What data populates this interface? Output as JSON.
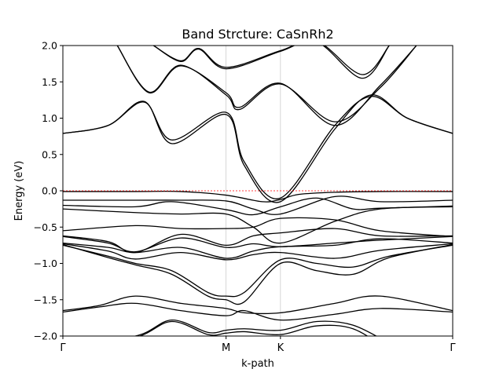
{
  "chart_data": {
    "type": "line",
    "title": "Band Strcture: CaSnRh2",
    "xlabel": "k-path",
    "ylabel": "Energy (eV)",
    "ylim": [
      -2.0,
      2.0
    ],
    "xlim": [
      0,
      4.3
    ],
    "yticks": [
      -2.0,
      -1.5,
      -1.0,
      -0.5,
      0.0,
      0.5,
      1.0,
      1.5,
      2.0
    ],
    "ytick_labels": [
      "−2.0",
      "−1.5",
      "−1.0",
      "−0.5",
      "0.0",
      "0.5",
      "1.0",
      "1.5",
      "2.0"
    ],
    "kpoints": [
      {
        "label": "Γ",
        "x": 0
      },
      {
        "label": "M",
        "x": 1.8
      },
      {
        "label": "K",
        "x": 2.4
      },
      {
        "label": "Γ",
        "x": 4.3
      }
    ],
    "fermi_level": 0.0,
    "grid": "vertical lines at high-symmetry points",
    "colors": {
      "bands": "#000000",
      "fermi": "#ff0000",
      "kline": "#cccccc"
    },
    "series": [
      {
        "x": [
          0,
          0.8,
          1.3,
          1.8,
          2.2,
          2.4,
          2.6,
          3.0,
          3.5,
          4.3
        ],
        "values": [
          -0.01,
          -0.01,
          -0.01,
          -0.06,
          -0.15,
          -0.12,
          -0.05,
          -0.02,
          -0.01,
          -0.01
        ]
      },
      {
        "x": [
          0,
          0.8,
          1.3,
          1.8,
          2.1,
          2.4,
          3.0,
          3.5,
          4.3
        ],
        "values": [
          -0.13,
          -0.13,
          -0.13,
          -0.14,
          -0.25,
          -0.32,
          -0.08,
          -0.15,
          -0.13
        ]
      },
      {
        "x": [
          0,
          0.8,
          1.2,
          1.8,
          2.1,
          2.4,
          2.8,
          3.2,
          3.5,
          4.3
        ],
        "values": [
          -0.2,
          -0.22,
          -0.15,
          -0.26,
          -0.33,
          -0.22,
          -0.1,
          -0.25,
          -0.24,
          -0.21
        ]
      },
      {
        "x": [
          0,
          0.8,
          1.3,
          1.8,
          2.1,
          2.4,
          3.0,
          3.5,
          4.3
        ],
        "values": [
          -0.25,
          -0.3,
          -0.32,
          -0.32,
          -0.5,
          -0.72,
          -0.42,
          -0.25,
          -0.22
        ]
      },
      {
        "x": [
          0,
          0.8,
          1.3,
          1.8,
          2.1,
          2.4,
          3.0,
          3.5,
          4.3
        ],
        "values": [
          -0.55,
          -0.48,
          -0.52,
          -0.52,
          -0.5,
          -0.38,
          -0.4,
          -0.55,
          -0.63
        ]
      },
      {
        "x": [
          0,
          0.5,
          0.8,
          1.3,
          1.8,
          2.1,
          2.4,
          3.0,
          3.5,
          4.3
        ],
        "values": [
          -0.62,
          -0.7,
          -0.85,
          -0.6,
          -0.75,
          -0.62,
          -0.58,
          -0.52,
          -0.62,
          -0.62
        ]
      },
      {
        "x": [
          0,
          0.5,
          0.8,
          1.3,
          1.8,
          2.1,
          2.4,
          3.0,
          3.5,
          4.3
        ],
        "values": [
          -0.63,
          -0.72,
          -0.84,
          -0.65,
          -0.78,
          -0.73,
          -0.77,
          -0.72,
          -0.68,
          -0.63
        ]
      },
      {
        "x": [
          0,
          0.5,
          0.8,
          1.3,
          1.8,
          2.1,
          2.4,
          3.0,
          3.5,
          4.3
        ],
        "values": [
          -0.72,
          -0.78,
          -0.85,
          -0.78,
          -0.93,
          -0.83,
          -0.77,
          -0.75,
          -0.66,
          -0.72
        ]
      },
      {
        "x": [
          0,
          0.5,
          0.8,
          1.3,
          1.8,
          2.1,
          2.4,
          3.0,
          3.5,
          4.3
        ],
        "values": [
          -0.73,
          -0.83,
          -0.94,
          -0.85,
          -0.95,
          -0.88,
          -0.85,
          -0.93,
          -0.82,
          -0.73
        ]
      },
      {
        "x": [
          0,
          0.5,
          0.8,
          1.2,
          1.6,
          1.8,
          2.0,
          2.4,
          2.8,
          3.2,
          3.6,
          4.3
        ],
        "values": [
          -0.75,
          -0.9,
          -1.0,
          -1.1,
          -1.4,
          -1.45,
          -1.4,
          -0.95,
          -1.0,
          -1.05,
          -0.9,
          -0.75
        ]
      },
      {
        "x": [
          0,
          0.5,
          0.8,
          1.2,
          1.6,
          1.8,
          2.0,
          2.4,
          2.8,
          3.2,
          3.6,
          4.3
        ],
        "values": [
          -0.74,
          -0.92,
          -1.02,
          -1.15,
          -1.45,
          -1.5,
          -1.53,
          -1.0,
          -1.1,
          -1.15,
          -0.92,
          -0.74
        ]
      },
      {
        "x": [
          0,
          0.4,
          0.8,
          1.3,
          1.8,
          2.0,
          2.4,
          3.0,
          3.5,
          4.3
        ],
        "values": [
          -1.65,
          -1.58,
          -1.45,
          -1.55,
          -1.62,
          -1.68,
          -1.68,
          -1.55,
          -1.45,
          -1.65
        ]
      },
      {
        "x": [
          0,
          0.4,
          0.8,
          1.3,
          1.8,
          2.0,
          2.4,
          3.0,
          3.5,
          4.3
        ],
        "values": [
          -1.67,
          -1.6,
          -1.55,
          -1.65,
          -1.72,
          -1.65,
          -1.78,
          -1.7,
          -1.62,
          -1.67
        ]
      },
      {
        "x": [
          0,
          0.8,
          1.2,
          1.6,
          1.8,
          2.0,
          2.4,
          2.8,
          3.2,
          3.6
        ],
        "values": [
          -2.1,
          -2.0,
          -1.78,
          -1.95,
          -1.92,
          -1.9,
          -1.92,
          -1.8,
          -1.85,
          -2.1
        ]
      },
      {
        "x": [
          0,
          0.8,
          1.2,
          1.6,
          1.8,
          2.0,
          2.4,
          2.8,
          3.2,
          3.6
        ],
        "values": [
          -2.2,
          -2.02,
          -1.8,
          -1.98,
          -1.96,
          -1.94,
          -1.98,
          -1.86,
          -1.9,
          -2.2
        ]
      },
      {
        "x": [
          0,
          0.5,
          0.9,
          1.2,
          1.8,
          2.0,
          2.4,
          3.0,
          3.4,
          3.8,
          4.3
        ],
        "values": [
          0.79,
          0.9,
          1.22,
          0.7,
          1.08,
          0.4,
          -0.1,
          0.9,
          1.3,
          1.0,
          0.79
        ]
      },
      {
        "x": [
          0,
          0.5,
          0.9,
          1.2,
          1.8,
          2.0,
          2.4,
          3.0,
          3.4,
          3.8,
          4.3
        ],
        "values": [
          0.79,
          0.9,
          1.23,
          0.65,
          1.05,
          0.35,
          -0.15,
          0.85,
          1.32,
          1.0,
          0.79
        ]
      },
      {
        "x": [
          0.6,
          0.95,
          1.3,
          1.8,
          1.95,
          2.4,
          3.0,
          3.5,
          3.9
        ],
        "values": [
          2.0,
          1.35,
          1.72,
          1.35,
          1.15,
          1.48,
          0.9,
          1.45,
          2.0
        ]
      },
      {
        "x": [
          0.6,
          0.95,
          1.3,
          1.8,
          1.95,
          2.4,
          3.0,
          3.5,
          3.9
        ],
        "values": [
          2.0,
          1.36,
          1.73,
          1.32,
          1.12,
          1.47,
          0.95,
          1.42,
          2.0
        ]
      },
      {
        "x": [
          1.0,
          1.3,
          1.5,
          1.8,
          2.4,
          2.8,
          3.3,
          3.6
        ],
        "values": [
          2.0,
          1.78,
          1.95,
          1.68,
          1.92,
          2.05,
          1.55,
          2.0
        ]
      },
      {
        "x": [
          1.0,
          1.3,
          1.5,
          1.8,
          2.4,
          2.8,
          3.3,
          3.6
        ],
        "values": [
          2.0,
          1.79,
          1.96,
          1.7,
          1.93,
          2.06,
          1.6,
          2.0
        ]
      }
    ]
  }
}
